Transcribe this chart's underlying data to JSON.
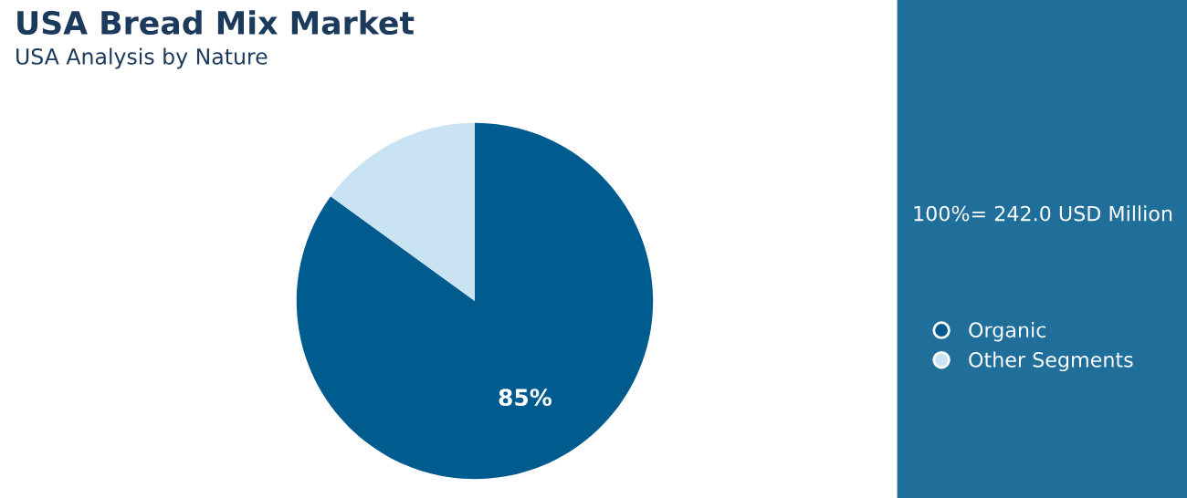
{
  "chart_data": {
    "type": "pie",
    "title": "USA Bread Mix Market",
    "subtitle": "USA Analysis by Nature",
    "categories": [
      "Organic",
      "Other Segments"
    ],
    "values": [
      85,
      15
    ],
    "colors": [
      "#005b8f",
      "#c9e3f2"
    ],
    "value_labels": [
      "85%",
      null
    ],
    "legend": "right",
    "annotations": [
      "100%= 242.0 USD Million"
    ]
  }
}
